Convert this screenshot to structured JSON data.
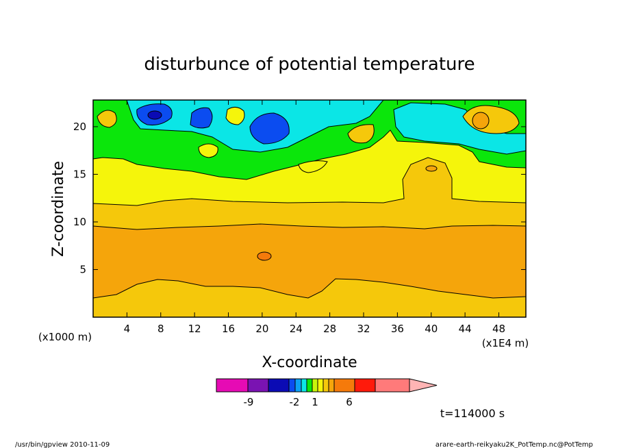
{
  "chart_data": {
    "type": "contour",
    "title": "disturbunce of potential temperature",
    "xlabel": "X-coordinate",
    "ylabel": "Z-coordinate",
    "x_unit_left": "(x1000 m)",
    "x_unit_right": "(x1E4 m)",
    "xlim": [
      0,
      51.2
    ],
    "ylim": [
      0,
      22.8
    ],
    "x_ticks": [
      "4",
      "8",
      "12",
      "16",
      "20",
      "24",
      "28",
      "32",
      "36",
      "40",
      "44",
      "48"
    ],
    "y_ticks": [
      "5",
      "10",
      "15",
      "20"
    ],
    "colorbar": {
      "tick_labels": [
        "-9",
        "-2",
        "1",
        "6"
      ],
      "colors": [
        "#e60bb4",
        "#7a13b2",
        "#0b0bb4",
        "#0b4cf0",
        "#0ba0f5",
        "#0be6e6",
        "#0be60b",
        "#c8f50b",
        "#f5f50b",
        "#f5c80b",
        "#f5a50b",
        "#f57a0b",
        "#ff1a0b",
        "#ff7a7a",
        "#ffb4b4"
      ]
    },
    "annotation": "t=114000 s"
  },
  "footer": {
    "left": "/usr/bin/gpview  2010-11-09",
    "right": "arare-earth-reikyaku2K_PotTemp.nc@PotTemp"
  }
}
